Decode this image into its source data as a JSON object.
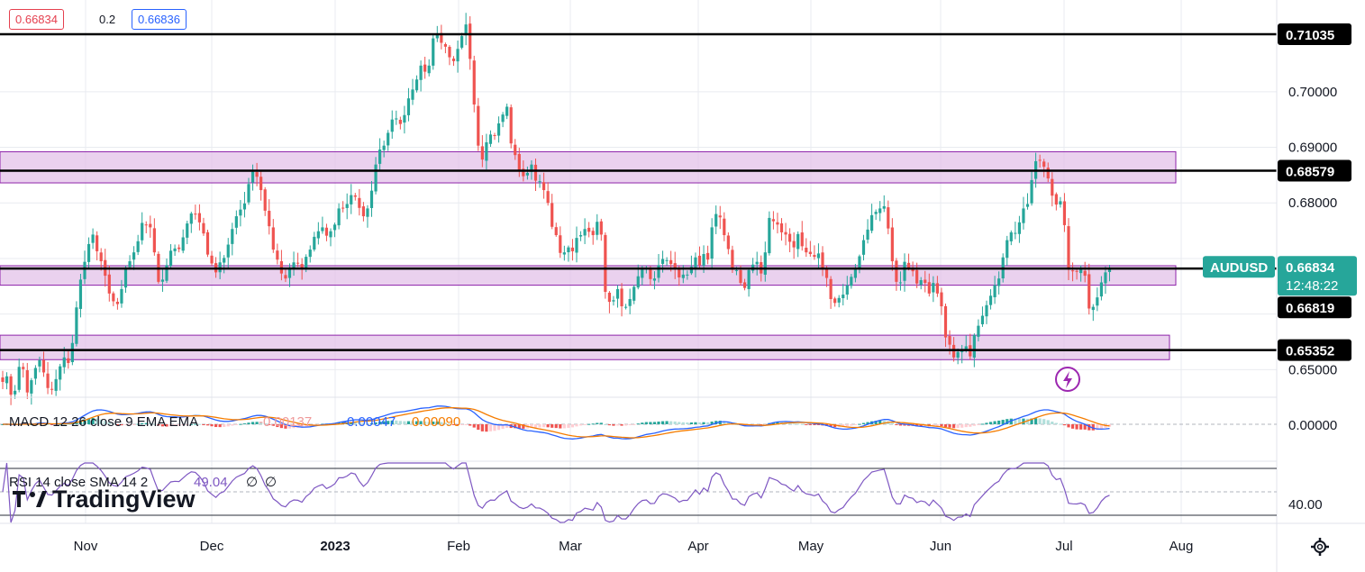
{
  "quote": {
    "bid": "0.66834",
    "spread": "0.2",
    "ask": "0.66836"
  },
  "colors": {
    "up": "#26a69a",
    "down": "#ef5350",
    "macd": "#2962ff",
    "signal": "#f57c00",
    "rsi": "#7e57c2",
    "zone_fill": "#e1bee7",
    "zone_stroke": "#8e24aa",
    "level": "#000000"
  },
  "chart_data": {
    "type": "candlestick",
    "symbol": "AUDUSD",
    "x_labels": [
      "Nov",
      "Dec",
      "2023",
      "Feb",
      "Mar",
      "Apr",
      "May",
      "Jun",
      "Jul",
      "Aug"
    ],
    "y_ticks": [
      "0.70000",
      "0.69000",
      "0.68000",
      "0.65000"
    ],
    "ylim": [
      0.6452,
      0.7165
    ],
    "levels": [
      {
        "value": 0.71035,
        "label": "0.71035"
      },
      {
        "value": 0.68579,
        "label": "0.68579"
      },
      {
        "value": 0.66819,
        "label": "0.66819"
      },
      {
        "value": 0.65352,
        "label": "0.65352"
      }
    ],
    "zones": [
      {
        "from": 0.6836,
        "to": 0.6892
      },
      {
        "from": 0.6652,
        "to": 0.6687
      },
      {
        "from": 0.6518,
        "to": 0.6562
      }
    ],
    "last_price": {
      "label": "AUDUSD",
      "price": "0.66834",
      "countdown": "12:48:22",
      "value": 0.66834
    },
    "closes": [
      0.6478,
      0.6488,
      0.6455,
      0.6462,
      0.6505,
      0.6501,
      0.6459,
      0.6481,
      0.6503,
      0.6517,
      0.6495,
      0.6467,
      0.6464,
      0.6483,
      0.6506,
      0.6522,
      0.6512,
      0.6548,
      0.6612,
      0.6662,
      0.6694,
      0.6726,
      0.6743,
      0.6713,
      0.6695,
      0.6669,
      0.6637,
      0.6623,
      0.6618,
      0.6645,
      0.6684,
      0.6695,
      0.6711,
      0.6731,
      0.6764,
      0.6761,
      0.6756,
      0.6711,
      0.6658,
      0.6662,
      0.6688,
      0.6714,
      0.6718,
      0.6717,
      0.6738,
      0.6763,
      0.6781,
      0.6779,
      0.6765,
      0.6745,
      0.6707,
      0.6691,
      0.6675,
      0.6693,
      0.6701,
      0.6725,
      0.6753,
      0.6776,
      0.6788,
      0.6799,
      0.6834,
      0.6856,
      0.6847,
      0.6823,
      0.6786,
      0.6758,
      0.6716,
      0.6698,
      0.6673,
      0.6664,
      0.6684,
      0.6693,
      0.6691,
      0.6681,
      0.6703,
      0.6716,
      0.6739,
      0.6749,
      0.6756,
      0.6741,
      0.6749,
      0.6761,
      0.679,
      0.679,
      0.6798,
      0.6814,
      0.6811,
      0.6791,
      0.6776,
      0.679,
      0.6822,
      0.6869,
      0.6896,
      0.6903,
      0.6926,
      0.695,
      0.6952,
      0.6942,
      0.6958,
      0.6988,
      0.7004,
      0.7022,
      0.7047,
      0.7036,
      0.7047,
      0.7096,
      0.7105,
      0.7088,
      0.7081,
      0.7062,
      0.7055,
      0.7077,
      0.71,
      0.7121,
      0.7059,
      0.6977,
      0.6903,
      0.6878,
      0.6909,
      0.6923,
      0.6921,
      0.6943,
      0.6959,
      0.6973,
      0.6907,
      0.6886,
      0.6859,
      0.6848,
      0.6854,
      0.6869,
      0.684,
      0.6839,
      0.6823,
      0.68,
      0.6757,
      0.6742,
      0.671,
      0.6711,
      0.672,
      0.6713,
      0.6737,
      0.6742,
      0.6753,
      0.6748,
      0.6742,
      0.6766,
      0.6743,
      0.664,
      0.6622,
      0.6625,
      0.6645,
      0.6614,
      0.6613,
      0.6627,
      0.6649,
      0.6668,
      0.668,
      0.6682,
      0.6663,
      0.6664,
      0.6688,
      0.6699,
      0.6697,
      0.669,
      0.6682,
      0.6666,
      0.6671,
      0.6671,
      0.6685,
      0.6702,
      0.6688,
      0.6708,
      0.6698,
      0.6756,
      0.678,
      0.6774,
      0.6742,
      0.6717,
      0.668,
      0.6679,
      0.6656,
      0.6647,
      0.6679,
      0.6689,
      0.6694,
      0.6673,
      0.6711,
      0.6773,
      0.6767,
      0.6761,
      0.6747,
      0.6743,
      0.673,
      0.672,
      0.6744,
      0.6722,
      0.6711,
      0.6708,
      0.6703,
      0.6709,
      0.6681,
      0.6665,
      0.6627,
      0.662,
      0.6629,
      0.6635,
      0.6652,
      0.6667,
      0.668,
      0.6704,
      0.6733,
      0.6752,
      0.6778,
      0.6784,
      0.679,
      0.6794,
      0.6754,
      0.6695,
      0.6658,
      0.6657,
      0.6694,
      0.6682,
      0.6677,
      0.6655,
      0.6661,
      0.6656,
      0.6637,
      0.6656,
      0.6637,
      0.6614,
      0.6558,
      0.6545,
      0.6522,
      0.6532,
      0.6533,
      0.6542,
      0.6524,
      0.6562,
      0.6579,
      0.6597,
      0.6616,
      0.6633,
      0.6652,
      0.6664,
      0.6702,
      0.6733,
      0.6747,
      0.6746,
      0.6765,
      0.679,
      0.6798,
      0.6841,
      0.6875,
      0.6876,
      0.6865,
      0.6844,
      0.6813,
      0.6797,
      0.6803,
      0.676,
      0.6681,
      0.6677,
      0.6676,
      0.668,
      0.6669,
      0.661,
      0.6613,
      0.663,
      0.6657,
      0.6675,
      0.6683
    ],
    "macd_panel": {
      "label": "MACD 12 26 close 9 EMA EMA",
      "hist_value": "-0.00137",
      "macd_value": "-0.00047",
      "signal_value": "0.00090",
      "y_tick": "0.00000"
    },
    "rsi_panel": {
      "label": "RSI 14 close SMA 14 2",
      "value": "49.04",
      "na1": "∅",
      "na2": "∅",
      "y_tick": "40.00"
    }
  },
  "watermark": "TradingView"
}
